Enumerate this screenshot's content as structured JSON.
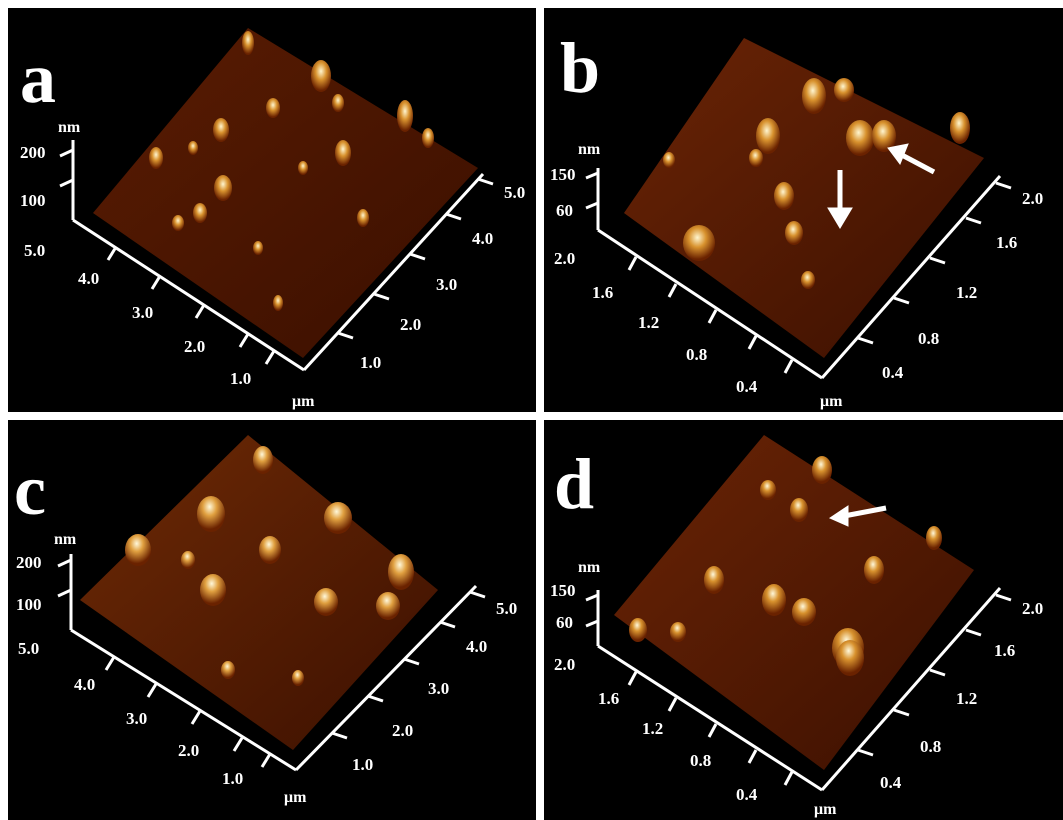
{
  "panels": [
    {
      "id": "a",
      "letter": "a",
      "z_unit": "nm",
      "z_ticks": [
        "200",
        "100"
      ],
      "left_axis_ticks": [
        "5.0",
        "4.0",
        "3.0",
        "2.0",
        "1.0"
      ],
      "right_axis_ticks": [
        "1.0",
        "2.0",
        "3.0",
        "4.0",
        "5.0"
      ],
      "xy_unit": "μm",
      "arrows": 0
    },
    {
      "id": "b",
      "letter": "b",
      "z_unit": "nm",
      "z_ticks": [
        "150",
        "60"
      ],
      "left_axis_ticks": [
        "2.0",
        "1.6",
        "1.2",
        "0.8",
        "0.4"
      ],
      "right_axis_ticks": [
        "0.4",
        "0.8",
        "1.2",
        "1.6",
        "2.0"
      ],
      "xy_unit": "μm",
      "arrows": 2
    },
    {
      "id": "c",
      "letter": "c",
      "z_unit": "nm",
      "z_ticks": [
        "200",
        "100"
      ],
      "left_axis_ticks": [
        "5.0",
        "4.0",
        "3.0",
        "2.0",
        "1.0"
      ],
      "right_axis_ticks": [
        "1.0",
        "2.0",
        "3.0",
        "4.0",
        "5.0"
      ],
      "xy_unit": "μm",
      "arrows": 0
    },
    {
      "id": "d",
      "letter": "d",
      "z_unit": "nm",
      "z_ticks": [
        "150",
        "60"
      ],
      "left_axis_ticks": [
        "2.0",
        "1.6",
        "1.2",
        "0.8",
        "0.4"
      ],
      "right_axis_ticks": [
        "0.4",
        "0.8",
        "1.2",
        "1.6",
        "2.0"
      ],
      "xy_unit": "μm",
      "arrows": 1
    }
  ],
  "colors": {
    "background": "#000000",
    "surface_low": "#3a0d00",
    "surface_mid": "#7a2a00",
    "surface_high": "#d08a2a",
    "peak": "#fff3c0",
    "axis": "#ffffff"
  }
}
